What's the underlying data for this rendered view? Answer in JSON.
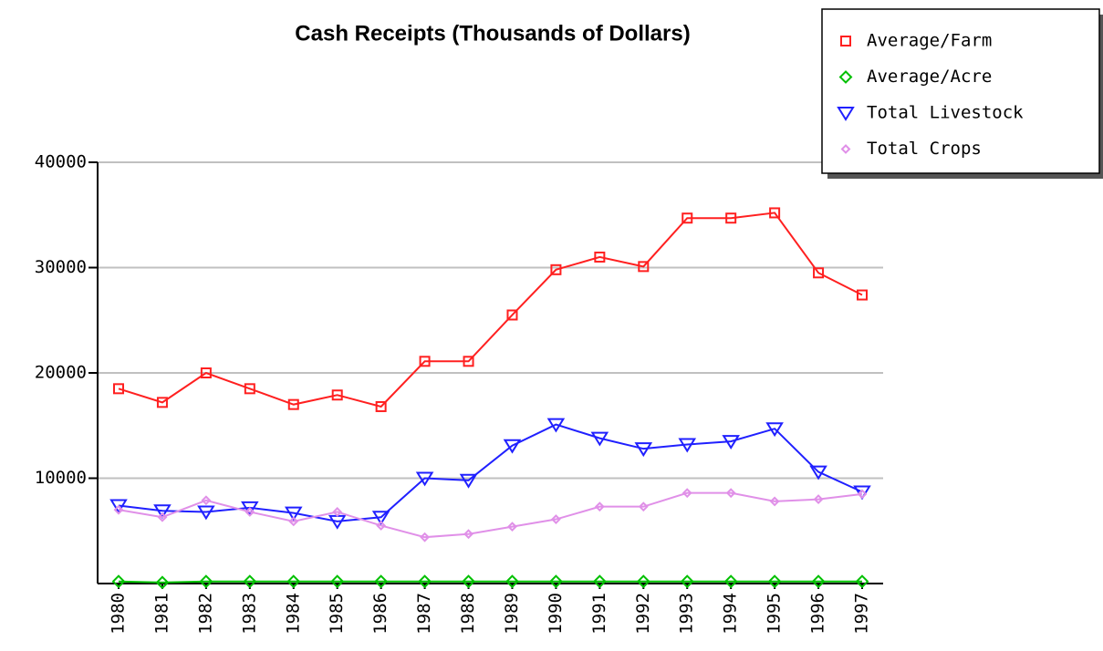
{
  "chart_data": {
    "type": "line",
    "title": "Cash Receipts (Thousands of Dollars)",
    "categories": [
      "1980",
      "1981",
      "1982",
      "1983",
      "1984",
      "1985",
      "1986",
      "1987",
      "1988",
      "1989",
      "1990",
      "1991",
      "1992",
      "1993",
      "1994",
      "1995",
      "1996",
      "1997"
    ],
    "series": [
      {
        "name": "Average/Farm",
        "color": "#ff2020",
        "marker": "square",
        "values": [
          18500,
          17200,
          20000,
          18500,
          17000,
          17900,
          16800,
          21100,
          21100,
          25500,
          29800,
          31000,
          30100,
          34700,
          34700,
          35200,
          29500,
          27400
        ]
      },
      {
        "name": "Average/Acre",
        "color": "#00c000",
        "marker": "diamond",
        "values": [
          200,
          100,
          200,
          200,
          200,
          200,
          200,
          200,
          200,
          200,
          200,
          200,
          200,
          200,
          200,
          200,
          200,
          200
        ]
      },
      {
        "name": "Total Livestock",
        "color": "#2020ff",
        "marker": "triangle-down",
        "values": [
          7400,
          6900,
          6800,
          7200,
          6700,
          5900,
          6300,
          10000,
          9800,
          13100,
          15100,
          13800,
          12800,
          13200,
          13500,
          14700,
          10600,
          8700
        ]
      },
      {
        "name": "Total Crops",
        "color": "#e090e8",
        "marker": "small-diamond",
        "values": [
          7000,
          6300,
          7900,
          6800,
          5900,
          6800,
          5500,
          4400,
          4700,
          5400,
          6100,
          7300,
          7300,
          8600,
          8600,
          7800,
          8000,
          8500
        ]
      }
    ],
    "ylim": [
      0,
      40000
    ],
    "yticks": [
      10000,
      20000,
      30000,
      40000
    ],
    "grid": true,
    "legend": "top-right"
  }
}
